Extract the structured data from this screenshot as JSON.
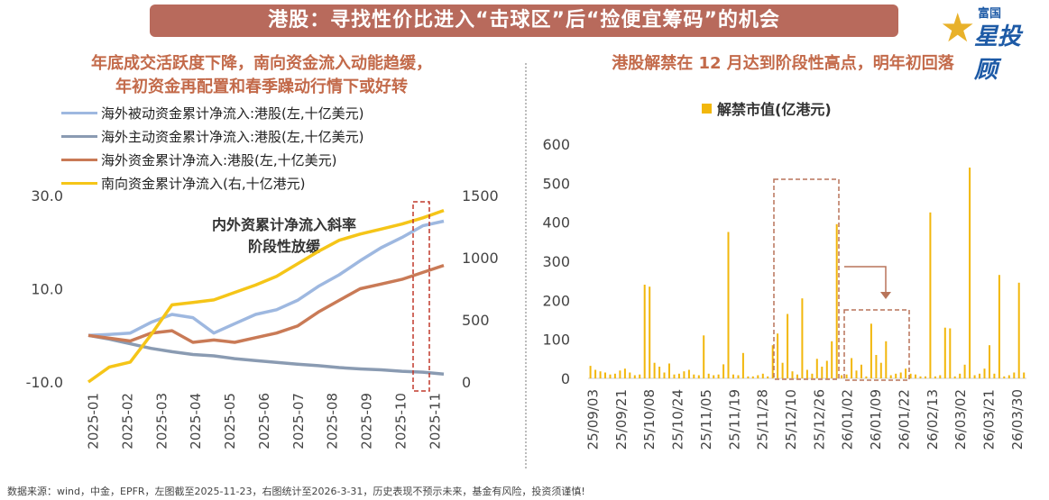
{
  "banner": "港股：寻找性价比进入“击球区”后“捡便宜筹码”的机会",
  "logo": {
    "small": "富国",
    "big": "星投顾"
  },
  "left_title_1": "年底成交活跃度下降，南向资金流入动能趋缓，",
  "left_title_2": "年初资金再配置和春季躁动行情下或好转",
  "right_title": "港股解禁在 12 月达到阶段性高点，明年初回落",
  "annotation_1": "内外资累计净流入斜率",
  "annotation_2": "阶段性放缓",
  "footer": "数据来源：wind，中金，EPFR，左图截至2025-11-23，右图统计至2026-3-31，历史表现不预示未来，基金有风险，投资须谨慎!",
  "colors": {
    "passive": "#9eb8e0",
    "active": "#8a9bb2",
    "overseas": "#c97a56",
    "south": "#f5c518",
    "bar": "#f2b70c",
    "box": "#b8745a",
    "banner": "#b86a5c"
  },
  "chart_data": [
    {
      "type": "line",
      "x_ticks": [
        "2025-01",
        "2025-02",
        "2025-03",
        "2025-04",
        "2025-05",
        "2025-06",
        "2025-07",
        "2025-08",
        "2025-09",
        "2025-10",
        "2025-11"
      ],
      "y_left_ticks": [
        "30.0",
        "10.0",
        "-10.0"
      ],
      "y_right_ticks": [
        "1500",
        "1000",
        "500",
        "0"
      ],
      "ylim_left": [
        -10,
        30
      ],
      "ylim_right": [
        0,
        1500
      ],
      "series": [
        {
          "name": "海外被动资金累计净流入:港股(左,十亿美元)",
          "axis": "left",
          "color": "#9eb8e0",
          "values": [
            0,
            0.2,
            0.5,
            2.8,
            4.5,
            3.8,
            0.5,
            2.5,
            4.5,
            5.5,
            7.5,
            10.5,
            13,
            16,
            18.8,
            21,
            23.5,
            24.5
          ]
        },
        {
          "name": "海外主动资金累计净流入:港股(左,十亿美元)",
          "axis": "left",
          "color": "#8a9bb2",
          "values": [
            0,
            -0.8,
            -1.8,
            -2.8,
            -3.5,
            -4.1,
            -4.4,
            -5.0,
            -5.4,
            -5.8,
            -6.2,
            -6.5,
            -6.9,
            -7.2,
            -7.4,
            -7.7,
            -7.9,
            -8.3
          ]
        },
        {
          "name": "海外资金累计净流入:港股(左,十亿美元)",
          "axis": "left",
          "color": "#c97a56",
          "values": [
            0,
            -0.6,
            -1.2,
            0.5,
            1.0,
            -1.5,
            -1.0,
            -1.5,
            -0.5,
            0.5,
            2.0,
            5.0,
            7.5,
            10.0,
            11.0,
            12.0,
            13.5,
            15.0
          ]
        },
        {
          "name": "南向资金累计净流入(右,十亿港元)",
          "axis": "right",
          "color": "#f5c518",
          "values": [
            0,
            120,
            160,
            380,
            620,
            640,
            660,
            720,
            780,
            850,
            950,
            1050,
            1140,
            1190,
            1230,
            1270,
            1320,
            1380
          ]
        }
      ],
      "highlight_range": [
        "2025-11",
        "2025-11"
      ]
    },
    {
      "type": "bar",
      "legend": "解禁市值(亿港元)",
      "y_ticks": [
        600,
        500,
        400,
        300,
        200,
        100,
        0
      ],
      "ylim": [
        0,
        600
      ],
      "x_ticks": [
        "25/09/03",
        "25/09/21",
        "25/10/08",
        "25/10/24",
        "25/11/05",
        "25/11/19",
        "25/11/28",
        "25/12/10",
        "25/12/26",
        "26/01/02",
        "26/01/09",
        "26/01/22",
        "26/02/13",
        "26/03/02",
        "26/03/21",
        "26/03/30"
      ],
      "values": [
        32,
        22,
        18,
        15,
        10,
        12,
        20,
        25,
        15,
        8,
        10,
        240,
        235,
        40,
        30,
        15,
        38,
        10,
        12,
        18,
        22,
        10,
        8,
        110,
        12,
        8,
        10,
        36,
        375,
        10,
        8,
        65,
        5,
        5,
        8,
        12,
        5,
        85,
        115,
        40,
        165,
        18,
        10,
        205,
        22,
        12,
        50,
        30,
        45,
        95,
        395,
        8,
        10,
        52,
        20,
        35,
        5,
        140,
        60,
        40,
        95,
        8,
        12,
        15,
        25,
        12,
        10,
        5,
        5,
        425,
        5,
        8,
        130,
        128,
        5,
        12,
        35,
        540,
        8,
        12,
        25,
        85,
        12,
        265,
        5,
        8,
        15,
        245,
        15
      ]
    }
  ]
}
